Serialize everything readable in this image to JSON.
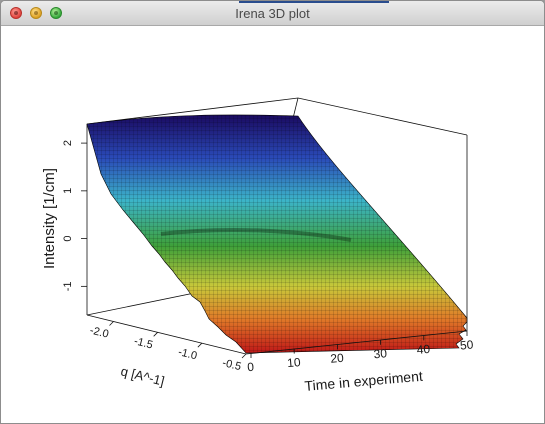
{
  "window": {
    "title": "Irena 3D plot"
  },
  "chart_data": {
    "type": "surface",
    "title": "",
    "x_label": "q [A^-1]",
    "y_label": "Time in experiment",
    "z_label": "Intensity [1/cm]",
    "x_ticks": [
      "-2.0",
      "-1.5",
      "-1.0",
      "-0.5"
    ],
    "y_ticks": [
      "0",
      "10",
      "20",
      "30",
      "40",
      "50"
    ],
    "z_ticks": [
      "-1",
      "0",
      "1",
      "2"
    ],
    "x_range": [
      -2.3,
      -0.5
    ],
    "y_range": [
      0,
      50
    ],
    "z_range": [
      -1.6,
      2.4
    ],
    "colormap": [
      "#1a0a60",
      "#2a4ab8",
      "#3cb4c8",
      "#3ea03a",
      "#c8c83a",
      "#e07828",
      "#c01818"
    ],
    "grid": false
  }
}
